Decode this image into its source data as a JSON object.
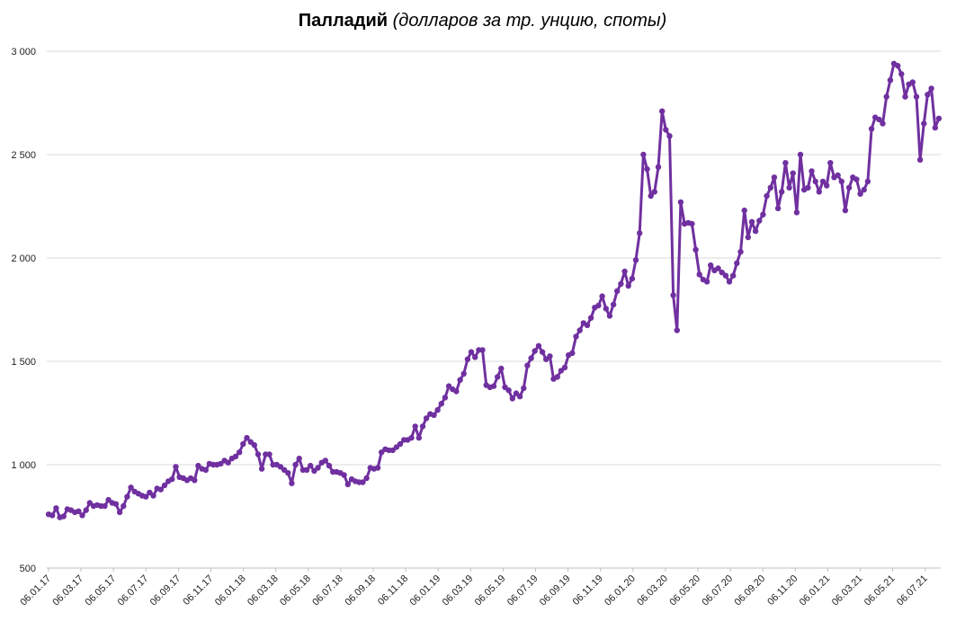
{
  "chart_data": {
    "type": "line",
    "title": "Палладий",
    "subtitle": "(долларов за тр. унцию, споты)",
    "xlabel": "",
    "ylabel": "",
    "ylim": [
      500,
      3000
    ],
    "yticks": [
      500,
      1000,
      1500,
      2000,
      2500,
      3000
    ],
    "ytick_labels": [
      "500",
      "1 000",
      "1 500",
      "2 000",
      "2 500",
      "3 000"
    ],
    "xtick_labels": [
      "06.01.17",
      "06.03.17",
      "06.05.17",
      "06.07.17",
      "06.09.17",
      "06.11.17",
      "06.01.18",
      "06.03.18",
      "06.05.18",
      "06.07.18",
      "06.09.18",
      "06.11.18",
      "06.01.19",
      "06.03.19",
      "06.05.19",
      "06.07.19",
      "06.09.19",
      "06.11.19",
      "06.01.20",
      "06.03.20",
      "06.05.20",
      "06.07.20",
      "06.09.20",
      "06.11.20",
      "06.01.21",
      "06.03.21",
      "06.05.21",
      "06.07.21"
    ],
    "grid": true,
    "line_color": "#7030A0",
    "series": [
      {
        "values": [
          760,
          755,
          790,
          745,
          750,
          785,
          780,
          770,
          775,
          755,
          780,
          815,
          800,
          805,
          800,
          800,
          830,
          815,
          810,
          770,
          800,
          845,
          890,
          870,
          860,
          850,
          845,
          865,
          850,
          885,
          880,
          900,
          920,
          930,
          990,
          940,
          935,
          925,
          935,
          925,
          995,
          980,
          975,
          1005,
          1000,
          1000,
          1005,
          1020,
          1010,
          1030,
          1040,
          1060,
          1100,
          1130,
          1110,
          1095,
          1050,
          980,
          1050,
          1050,
          1000,
          1000,
          990,
          975,
          960,
          910,
          1000,
          1030,
          975,
          975,
          995,
          970,
          985,
          1010,
          1020,
          995,
          965,
          965,
          960,
          950,
          905,
          930,
          920,
          915,
          915,
          935,
          985,
          980,
          985,
          1060,
          1075,
          1070,
          1070,
          1085,
          1100,
          1120,
          1120,
          1130,
          1185,
          1130,
          1185,
          1225,
          1245,
          1240,
          1265,
          1295,
          1325,
          1380,
          1365,
          1355,
          1410,
          1440,
          1510,
          1545,
          1520,
          1555,
          1555,
          1385,
          1375,
          1380,
          1425,
          1465,
          1375,
          1360,
          1320,
          1345,
          1330,
          1370,
          1480,
          1515,
          1550,
          1575,
          1545,
          1510,
          1525,
          1415,
          1425,
          1455,
          1470,
          1530,
          1540,
          1620,
          1650,
          1685,
          1675,
          1710,
          1760,
          1770,
          1815,
          1755,
          1720,
          1775,
          1840,
          1875,
          1935,
          1865,
          1900,
          1990,
          2120,
          2500,
          2430,
          2300,
          2320,
          2440,
          2710,
          2620,
          2590,
          1820,
          1650,
          2270,
          2165,
          2170,
          2165,
          2040,
          1920,
          1895,
          1885,
          1965,
          1940,
          1950,
          1930,
          1915,
          1885,
          1915,
          1975,
          2030,
          2230,
          2100,
          2175,
          2130,
          2180,
          2210,
          2300,
          2340,
          2390,
          2240,
          2320,
          2460,
          2340,
          2410,
          2220,
          2500,
          2330,
          2340,
          2420,
          2370,
          2320,
          2370,
          2350,
          2460,
          2390,
          2400,
          2370,
          2230,
          2340,
          2390,
          2380,
          2310,
          2330,
          2370,
          2625,
          2680,
          2670,
          2650,
          2780,
          2860,
          2940,
          2930,
          2890,
          2780,
          2840,
          2850,
          2780,
          2475,
          2650,
          2790,
          2820,
          2630,
          2675
        ]
      }
    ]
  }
}
